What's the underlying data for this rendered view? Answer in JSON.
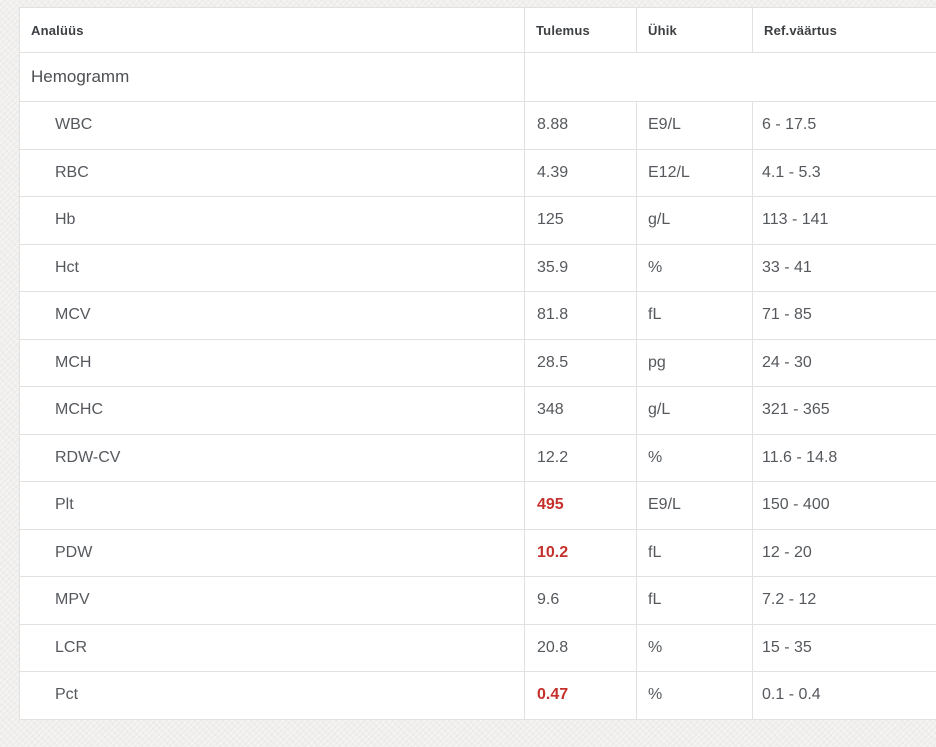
{
  "colors": {
    "abnormal": "#c6302c",
    "page_background": "#f0efee",
    "table_border": "#e2e1e0",
    "header_text": "#3d4043",
    "body_text": "#55585c"
  },
  "table": {
    "columns": [
      "Analüüs",
      "Tulemus",
      "Ühik",
      "Ref.väärtus"
    ],
    "group": "Hemogramm",
    "rows": [
      {
        "name": "WBC",
        "result": "8.88",
        "unit": "E9/L",
        "ref": "6 - 17.5",
        "abnormal": false
      },
      {
        "name": "RBC",
        "result": "4.39",
        "unit": "E12/L",
        "ref": "4.1 - 5.3",
        "abnormal": false
      },
      {
        "name": "Hb",
        "result": "125",
        "unit": "g/L",
        "ref": "113 - 141",
        "abnormal": false
      },
      {
        "name": "Hct",
        "result": "35.9",
        "unit": "%",
        "ref": "33 - 41",
        "abnormal": false
      },
      {
        "name": "MCV",
        "result": "81.8",
        "unit": "fL",
        "ref": "71 - 85",
        "abnormal": false
      },
      {
        "name": "MCH",
        "result": "28.5",
        "unit": "pg",
        "ref": "24 - 30",
        "abnormal": false
      },
      {
        "name": "MCHC",
        "result": "348",
        "unit": "g/L",
        "ref": "321 - 365",
        "abnormal": false
      },
      {
        "name": "RDW-CV",
        "result": "12.2",
        "unit": "%",
        "ref": "11.6 - 14.8",
        "abnormal": false
      },
      {
        "name": "Plt",
        "result": "495",
        "unit": "E9/L",
        "ref": "150 - 400",
        "abnormal": true
      },
      {
        "name": "PDW",
        "result": "10.2",
        "unit": "fL",
        "ref": "12 - 20",
        "abnormal": true
      },
      {
        "name": "MPV",
        "result": "9.6",
        "unit": "fL",
        "ref": "7.2 - 12",
        "abnormal": false
      },
      {
        "name": "LCR",
        "result": "20.8",
        "unit": "%",
        "ref": "15 - 35",
        "abnormal": false
      },
      {
        "name": "Pct",
        "result": "0.47",
        "unit": "%",
        "ref": "0.1 - 0.4",
        "abnormal": true
      }
    ]
  }
}
